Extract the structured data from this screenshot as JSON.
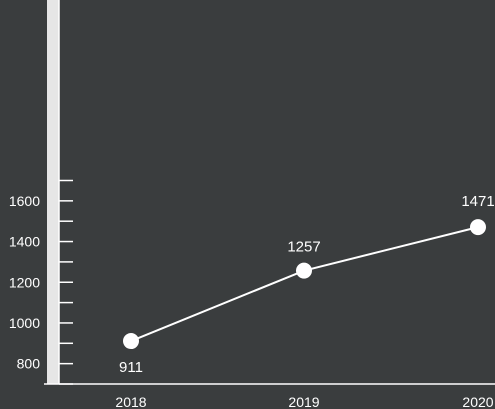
{
  "chart_data": {
    "type": "line",
    "x": [
      "2018",
      "2019",
      "2020"
    ],
    "series": [
      {
        "values": [
          911,
          1257,
          1471
        ]
      }
    ],
    "y_ticks": [
      800,
      1000,
      1200,
      1400,
      1600
    ],
    "data_labels": [
      "911",
      "1257",
      "1471"
    ],
    "title": "",
    "xlabel": "",
    "ylabel": "",
    "ylim": [
      700,
      1700
    ],
    "grid": false,
    "colors": {
      "background": "#3a3d3e",
      "line": "#ffffff",
      "marker": "#ffffff",
      "text": "#ffffff",
      "axis": "#ffffff",
      "y_band": "#e6e6e6"
    }
  }
}
